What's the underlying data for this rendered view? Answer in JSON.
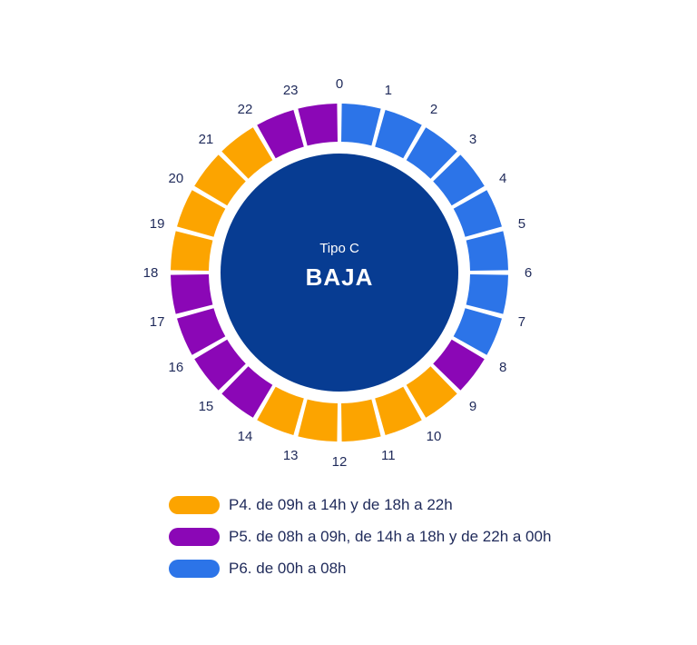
{
  "diagram": {
    "center": {
      "subtitle": "Tipo C",
      "title": "BAJA"
    },
    "hours": [
      {
        "label": "0",
        "period": "P6"
      },
      {
        "label": "1",
        "period": "P6"
      },
      {
        "label": "2",
        "period": "P6"
      },
      {
        "label": "3",
        "period": "P6"
      },
      {
        "label": "4",
        "period": "P6"
      },
      {
        "label": "5",
        "period": "P6"
      },
      {
        "label": "6",
        "period": "P6"
      },
      {
        "label": "7",
        "period": "P6"
      },
      {
        "label": "8",
        "period": "P5"
      },
      {
        "label": "9",
        "period": "P4"
      },
      {
        "label": "10",
        "period": "P4"
      },
      {
        "label": "11",
        "period": "P4"
      },
      {
        "label": "12",
        "period": "P4"
      },
      {
        "label": "13",
        "period": "P4"
      },
      {
        "label": "14",
        "period": "P5"
      },
      {
        "label": "15",
        "period": "P5"
      },
      {
        "label": "16",
        "period": "P5"
      },
      {
        "label": "17",
        "period": "P5"
      },
      {
        "label": "18",
        "period": "P4"
      },
      {
        "label": "19",
        "period": "P4"
      },
      {
        "label": "20",
        "period": "P4"
      },
      {
        "label": "21",
        "period": "P4"
      },
      {
        "label": "22",
        "period": "P5"
      },
      {
        "label": "23",
        "period": "P5"
      }
    ],
    "colors": {
      "P4": "#fca400",
      "P5": "#8b07b6",
      "P6": "#2c74e8",
      "center": "#073c92"
    }
  },
  "legend": [
    {
      "period": "P4",
      "text": "P4. de 09h a 14h y de 18h a 22h"
    },
    {
      "period": "P5",
      "text": "P5. de 08h a 09h, de 14h a 18h y de 22h a 00h"
    },
    {
      "period": "P6",
      "text": "P6. de 00h a 08h"
    }
  ]
}
